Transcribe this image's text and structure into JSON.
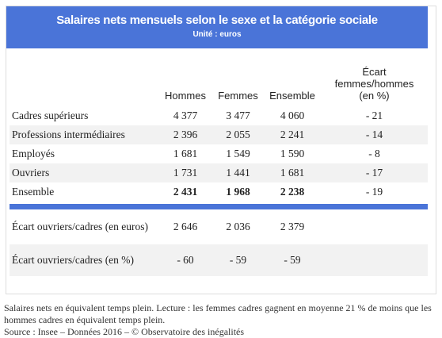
{
  "header": {
    "title": "Salaires nets mensuels selon le sexe et la catégorie sociale",
    "subtitle": "Unité : euros"
  },
  "table": {
    "columns": [
      "Hommes",
      "Femmes",
      "Ensemble",
      "Écart femmes/hommes (en %)"
    ],
    "rows": [
      [
        "Cadres supérieurs",
        "4 377",
        "3 477",
        "4 060",
        "- 21"
      ],
      [
        "Professions intermédiaires",
        "2 396",
        "2 055",
        "2 241",
        "- 14"
      ],
      [
        "Employés",
        "1 681",
        "1 549",
        "1 590",
        "- 8"
      ],
      [
        "Ouvriers",
        "1 731",
        "1 441",
        "1 681",
        "- 17"
      ],
      [
        "Ensemble",
        "2 431",
        "1 968",
        "2 238",
        "- 19"
      ]
    ],
    "bold_row": 4,
    "bold_cells": [
      1,
      2,
      3
    ],
    "extra_rows": [
      [
        "Écart ouvriers/cadres (en euros)",
        "2 646",
        "2 036",
        "2 379"
      ],
      [
        "Écart ouvriers/cadres (en %)",
        "- 60",
        "- 59",
        "- 59"
      ]
    ]
  },
  "caption": "Salaires nets en équivalent temps plein. Lecture : les femmes cadres gagnent en moyenne 21 % de moins que les hommes cadres en équivalent temps plein.",
  "source": "Source : Insee – Données 2016 – © Observatoire des inégalités"
}
